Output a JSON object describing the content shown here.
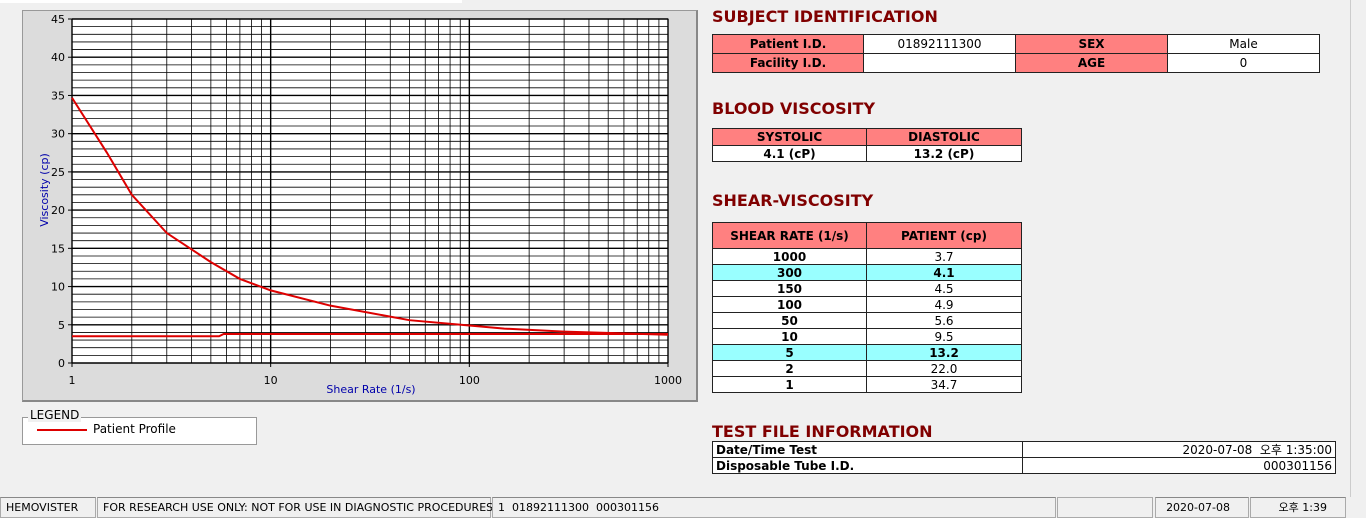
{
  "chart_data": {
    "type": "line",
    "xlabel": "Shear Rate (1/s)",
    "ylabel": "Viscosity (cp)",
    "xscale": "log",
    "xlim": [
      1,
      1000
    ],
    "xticks": [
      1,
      10,
      100,
      1000
    ],
    "ylim": [
      0,
      45
    ],
    "yticks": [
      0,
      5,
      10,
      15,
      20,
      25,
      30,
      35,
      40,
      45
    ],
    "grid": true,
    "minor_grid": true,
    "legend_title": "LEGEND",
    "legend": "bottom-left",
    "series": [
      {
        "name": "Patient Profile",
        "color": "#dd0000",
        "x": [
          1,
          1.5,
          2,
          3,
          5,
          7,
          10,
          20,
          50,
          100,
          150,
          300,
          1000
        ],
        "values": [
          34.7,
          27.5,
          22.0,
          17.0,
          13.2,
          11.0,
          9.5,
          7.5,
          5.6,
          4.9,
          4.5,
          4.1,
          3.7
        ]
      },
      {
        "color": "#dd0000",
        "x": [
          1,
          5.5,
          5.8,
          1000
        ],
        "values": [
          3.5,
          3.5,
          3.8,
          3.8
        ]
      }
    ]
  },
  "subject_identification": {
    "title": "SUBJECT IDENTIFICATION",
    "rows": [
      [
        "Patient I.D.",
        "01892111300",
        "SEX",
        "Male"
      ],
      [
        "Facility I.D.",
        null,
        "AGE",
        "0"
      ]
    ]
  },
  "blood_viscosity": {
    "title": "BLOOD VISCOSITY",
    "headers": [
      "SYSTOLIC",
      "DIASTOLIC"
    ],
    "values": [
      "4.1 (cP)",
      "13.2 (cP)"
    ]
  },
  "shear_viscosity": {
    "title": "SHEAR-VISCOSITY",
    "headers": [
      "SHEAR RATE (1/s)",
      "PATIENT (cp)"
    ],
    "rows": [
      {
        "shear_rate": "1000",
        "patient": "3.7",
        "highlight": false
      },
      {
        "shear_rate": "300",
        "patient": "4.1",
        "highlight": true
      },
      {
        "shear_rate": "150",
        "patient": "4.5",
        "highlight": false
      },
      {
        "shear_rate": "100",
        "patient": "4.9",
        "highlight": false
      },
      {
        "shear_rate": "50",
        "patient": "5.6",
        "highlight": false
      },
      {
        "shear_rate": "10",
        "patient": "9.5",
        "highlight": false
      },
      {
        "shear_rate": "5",
        "patient": "13.2",
        "highlight": true
      },
      {
        "shear_rate": "2",
        "patient": "22.0",
        "highlight": false
      },
      {
        "shear_rate": "1",
        "patient": "34.7",
        "highlight": false
      }
    ]
  },
  "test_file_information": {
    "title": "TEST FILE INFORMATION",
    "rows": [
      [
        "Date/Time Test",
        "2020-07-08  오후 1:35:00"
      ],
      [
        "Disposable Tube I.D.",
        "000301156"
      ]
    ]
  },
  "status_bar": {
    "app": "HEMOVISTER",
    "notice": "FOR RESEARCH USE ONLY: NOT FOR USE IN DIAGNOSTIC PROCEDURES",
    "record": "1  01892111300  000301156",
    "date": "2020-07-08",
    "time": "오후 1:39"
  }
}
